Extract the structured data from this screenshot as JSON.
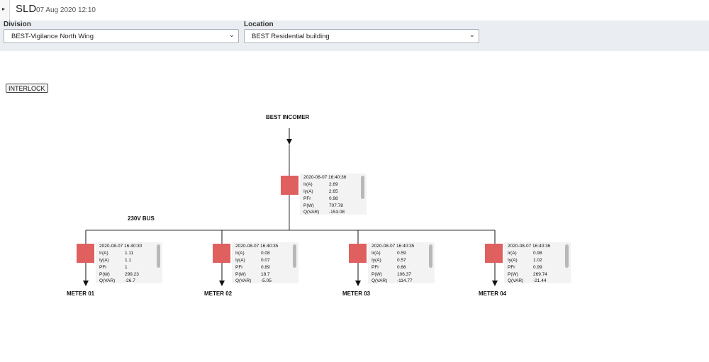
{
  "header": {
    "title": "SLD",
    "date": "07 Aug 2020 12:10",
    "toggle_icon": "caret-right-icon"
  },
  "filters": {
    "division_label": "Division",
    "division_value": "BEST-Vigilance North Wing",
    "location_label": "Location",
    "location_value": "BEST Residential building"
  },
  "interlock_label": "INTERLOCK",
  "diagram": {
    "incomer_label": "BEST INCOMER",
    "bus_label": "230V BUS",
    "incomer": {
      "timestamp": "2020-08-07 16:40:36",
      "readings": [
        {
          "key": "Ir(A)",
          "value": "2.69"
        },
        {
          "key": "Iy(A)",
          "value": "2.65"
        },
        {
          "key": "PFr",
          "value": "0.98"
        },
        {
          "key": "P(W)",
          "value": "707.78"
        },
        {
          "key": "Q(VAR)",
          "value": "-153.08"
        }
      ]
    },
    "meters": [
      {
        "label": "METER 01",
        "timestamp": "2020-08-07 16:40:30",
        "readings": [
          {
            "key": "Ir(A)",
            "value": "1.11"
          },
          {
            "key": "Iy(A)",
            "value": "1.1"
          },
          {
            "key": "PFr",
            "value": "1"
          },
          {
            "key": "P(W)",
            "value": "299.23"
          },
          {
            "key": "Q(VAR)",
            "value": "-26.7"
          }
        ]
      },
      {
        "label": "METER 02",
        "timestamp": "2020-08-07 16:40:35",
        "readings": [
          {
            "key": "Ir(A)",
            "value": "0.08"
          },
          {
            "key": "Iy(A)",
            "value": "0.07"
          },
          {
            "key": "PFr",
            "value": "0.89"
          },
          {
            "key": "P(W)",
            "value": "18.7"
          },
          {
            "key": "Q(VAR)",
            "value": "-5.05"
          }
        ]
      },
      {
        "label": "METER 03",
        "timestamp": "2020-08-07 16:40:35",
        "readings": [
          {
            "key": "Ir(A)",
            "value": "0.59"
          },
          {
            "key": "Iy(A)",
            "value": "0.57"
          },
          {
            "key": "PFr",
            "value": "0.66"
          },
          {
            "key": "P(W)",
            "value": "106.37"
          },
          {
            "key": "Q(VAR)",
            "value": "-114.77"
          }
        ]
      },
      {
        "label": "METER 04",
        "timestamp": "2020-08-07 16:40:36",
        "readings": [
          {
            "key": "Ir(A)",
            "value": "0.98"
          },
          {
            "key": "Iy(A)",
            "value": "1.02"
          },
          {
            "key": "PFr",
            "value": "0.99"
          },
          {
            "key": "P(W)",
            "value": "269.74"
          },
          {
            "key": "Q(VAR)",
            "value": "-21.44"
          }
        ]
      }
    ]
  },
  "colors": {
    "breaker": "#e06060",
    "filter_bar": "#eaedf2"
  }
}
